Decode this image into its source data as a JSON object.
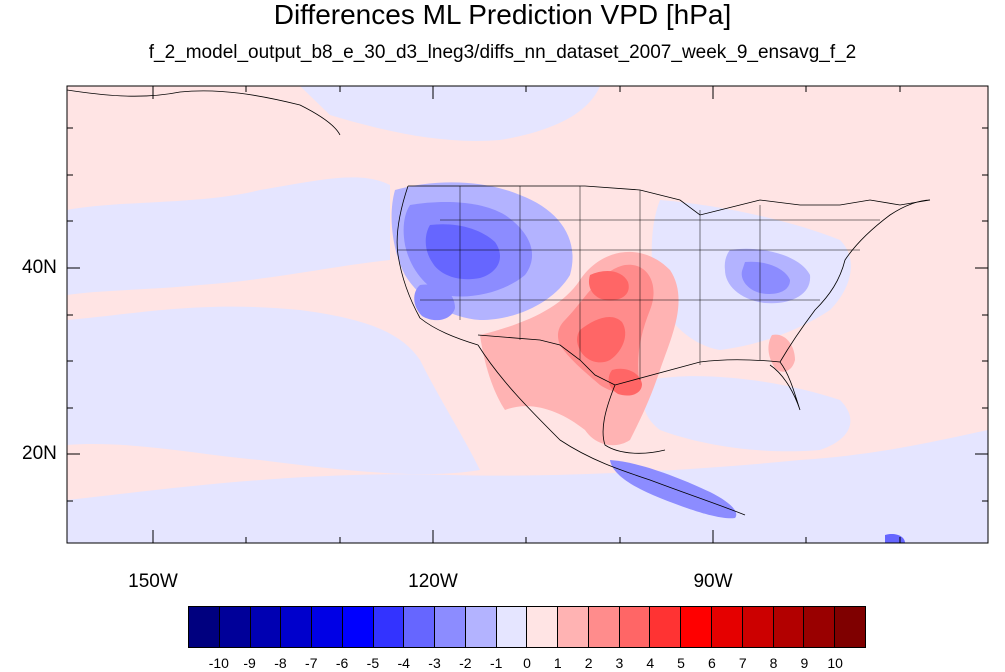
{
  "title": "Differences ML Prediction VPD [hPa]",
  "subtitle": "f_2_model_output_b8_e_30_d3_lneg3/diffs_nn_dataset_2007_week_9_ensavg_f_2",
  "map": {
    "lon_range": [
      -160,
      -60
    ],
    "lat_range": [
      10,
      58
    ],
    "lat_labels": [
      {
        "lat": 40,
        "text": "40N"
      },
      {
        "lat": 20,
        "text": "20N"
      }
    ],
    "lon_labels": [
      {
        "lon": -150,
        "text": "150W"
      },
      {
        "lon": -120,
        "text": "120W"
      },
      {
        "lon": -90,
        "text": "90W"
      }
    ],
    "background_color": "#ffe4e4"
  },
  "colorbar": {
    "labels": [
      "-10",
      "-9",
      "-8",
      "-7",
      "-6",
      "-5",
      "-4",
      "-3",
      "-2",
      "-1",
      "0",
      "1",
      "2",
      "3",
      "4",
      "5",
      "6",
      "7",
      "8",
      "9",
      "10"
    ],
    "colors": [
      "#00007f",
      "#000099",
      "#0000b2",
      "#0000cc",
      "#0000e5",
      "#0000ff",
      "#3333ff",
      "#6666ff",
      "#8c8cff",
      "#b3b3ff",
      "#e5e5ff",
      "#ffe4e4",
      "#ffb3b3",
      "#ff8c8c",
      "#ff6666",
      "#ff3333",
      "#ff0000",
      "#e50000",
      "#cc0000",
      "#b20000",
      "#990000",
      "#7f0000"
    ]
  }
}
